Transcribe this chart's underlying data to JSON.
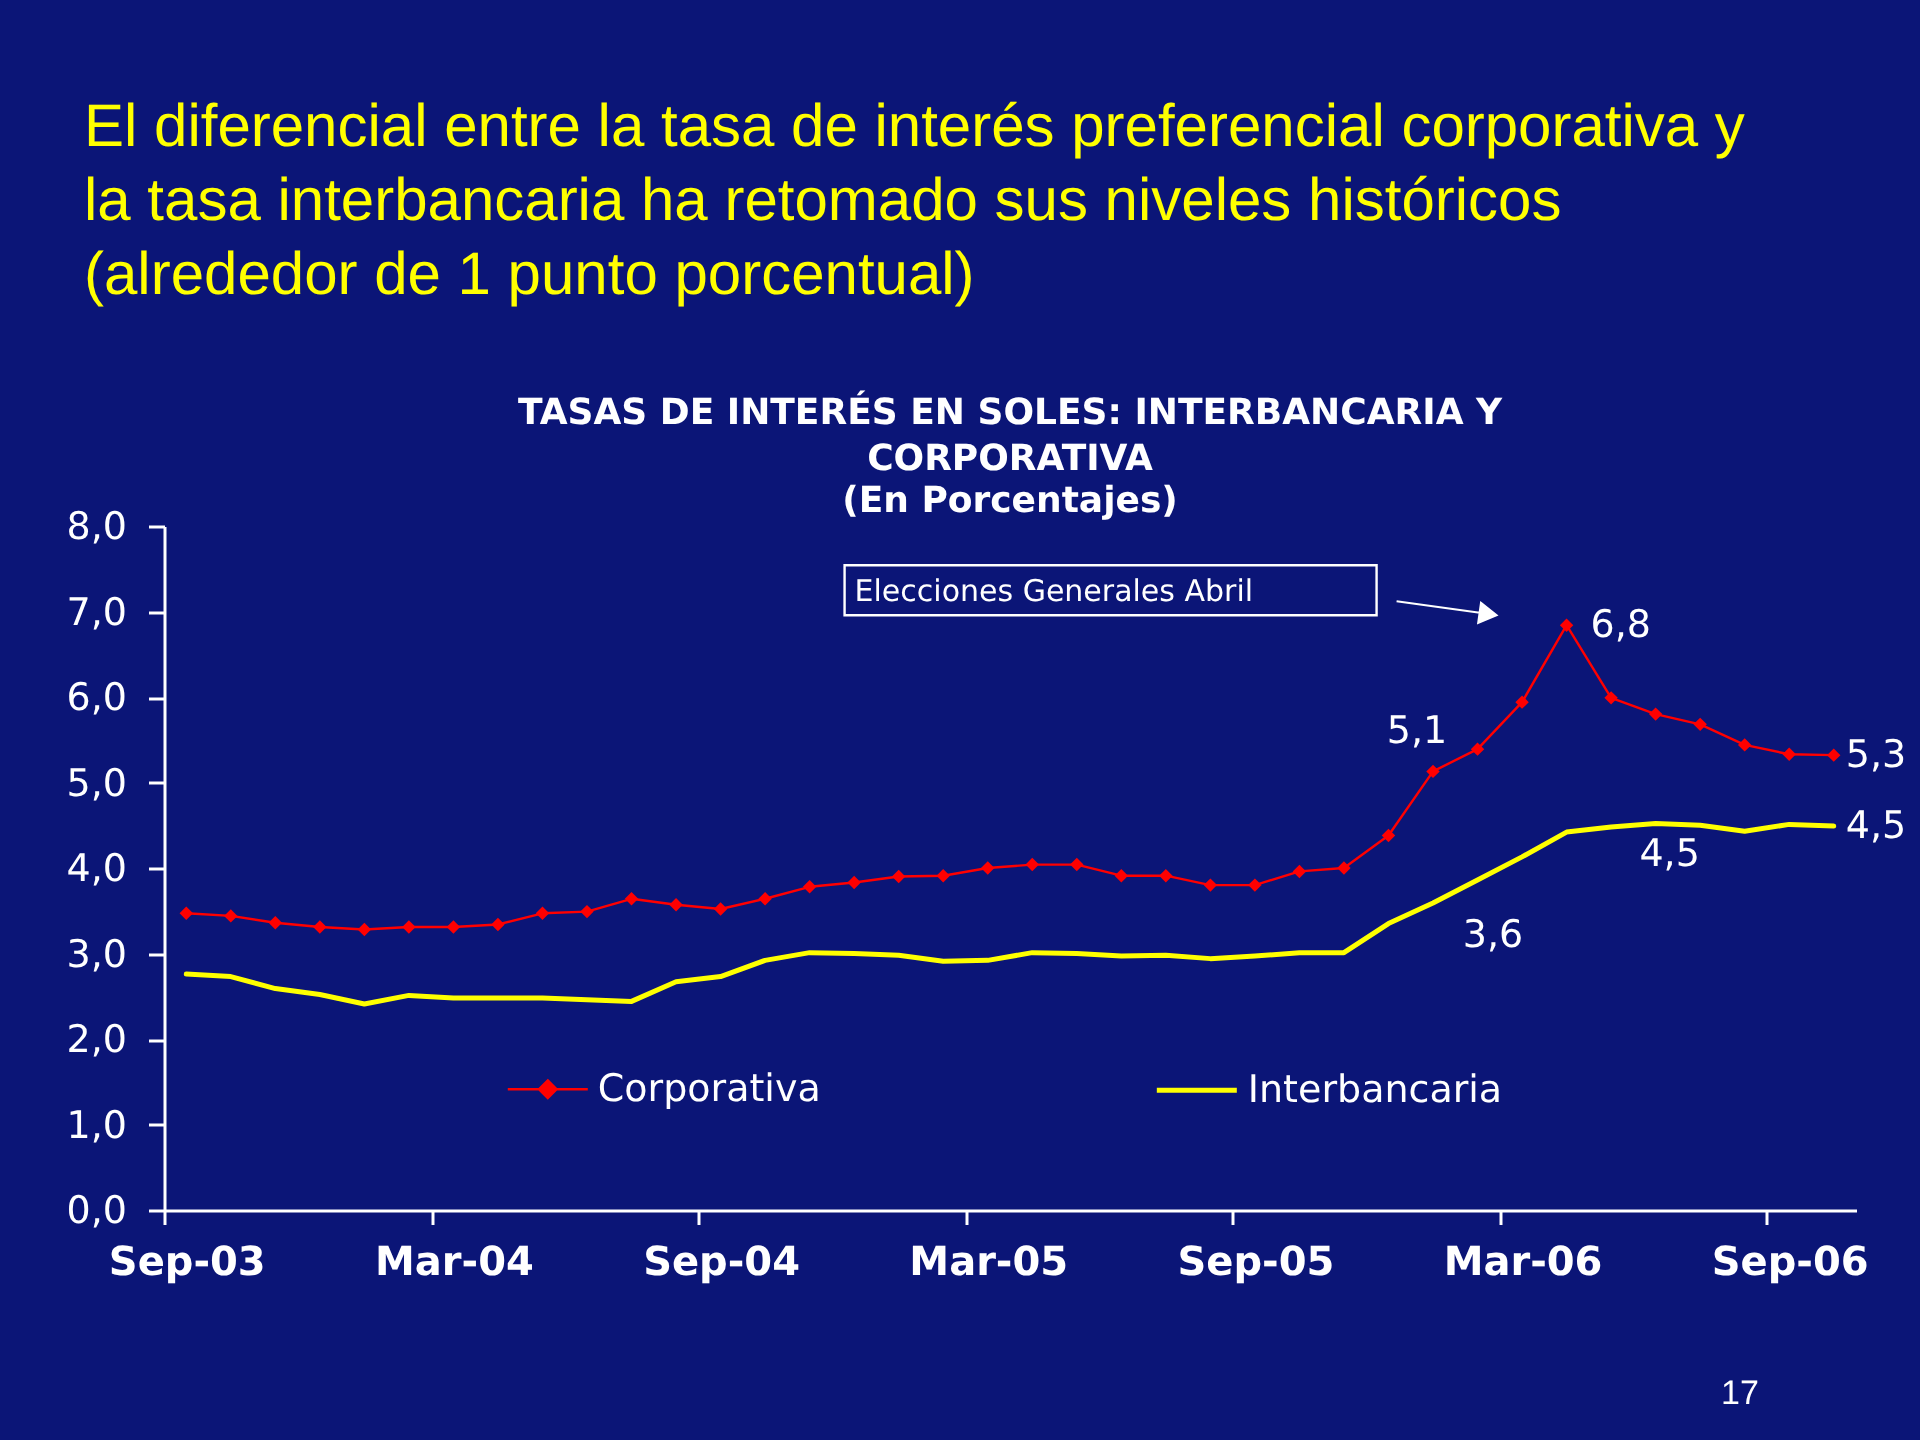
{
  "chart_data": {
    "type": "line",
    "title": "TASAS DE INTERÉS EN SOLES: INTERBANCARIA Y CORPORATIVA",
    "subtitle": "(En Porcentajes)",
    "annotations": [
      "El diferencial entre la tasa de interés preferencial corporativa y la tasa interbancaria ha retomado sus niveles históricos (alrededor de 1 punto porcentual)",
      "Elecciones Generales Abril",
      "17"
    ],
    "categories": [
      "Sep-03",
      null,
      null,
      null,
      null,
      null,
      "Mar-04",
      null,
      null,
      null,
      null,
      null,
      "Sep-04",
      null,
      null,
      null,
      null,
      null,
      "Mar-05",
      null,
      null,
      null,
      null,
      null,
      "Sep-05",
      null,
      null,
      null,
      null,
      null,
      "Mar-06",
      null,
      null,
      null,
      null,
      null,
      "Sep-06",
      null
    ],
    "series": [
      {
        "name": "Corporativa",
        "color": "#ff0000",
        "marker": "diamond",
        "line_style": "solid",
        "values": [
          3.47,
          3.44,
          3.36,
          3.31,
          3.28,
          3.31,
          3.31,
          3.34,
          3.47,
          3.49,
          3.64,
          3.57,
          3.52,
          3.64,
          3.78,
          3.83,
          3.9,
          3.91,
          4.0,
          4.04,
          4.04,
          3.91,
          3.91,
          3.8,
          3.8,
          3.96,
          4.0,
          4.38,
          5.13,
          5.39,
          5.94,
          6.84,
          5.99,
          5.8,
          5.68,
          5.44,
          5.33,
          5.32
        ],
        "value_labels": [
          null,
          null,
          null,
          null,
          null,
          null,
          null,
          null,
          null,
          null,
          null,
          null,
          null,
          null,
          null,
          null,
          null,
          null,
          null,
          null,
          null,
          null,
          null,
          null,
          null,
          null,
          null,
          null,
          "5,1",
          null,
          null,
          "6,8",
          null,
          null,
          null,
          null,
          null,
          "5,3"
        ]
      },
      {
        "name": "Interbancaria",
        "color": "#ffff00",
        "marker": "none",
        "line_style": "solid",
        "values": [
          2.76,
          2.73,
          2.59,
          2.52,
          2.41,
          2.51,
          2.48,
          2.48,
          2.48,
          2.46,
          2.44,
          2.67,
          2.73,
          2.92,
          3.01,
          3.0,
          2.98,
          2.91,
          2.92,
          3.01,
          3.0,
          2.97,
          2.98,
          2.94,
          2.97,
          3.01,
          3.01,
          3.35,
          3.59,
          3.86,
          4.13,
          4.42,
          4.48,
          4.52,
          4.5,
          4.43,
          4.51,
          4.49
        ],
        "value_labels": [
          null,
          null,
          null,
          null,
          null,
          null,
          null,
          null,
          null,
          null,
          null,
          null,
          null,
          null,
          null,
          null,
          null,
          null,
          null,
          null,
          null,
          null,
          null,
          null,
          null,
          null,
          null,
          null,
          "3,6",
          null,
          null,
          null,
          null,
          "4,5",
          null,
          null,
          null,
          "4,5"
        ]
      }
    ],
    "ylim": [
      0,
      8
    ],
    "yticks": [
      {
        "value": 0,
        "label": "0,0"
      },
      {
        "value": 1,
        "label": "1,0"
      },
      {
        "value": 2,
        "label": "2,0"
      },
      {
        "value": 3,
        "label": "3,0"
      },
      {
        "value": 4,
        "label": "4,0"
      },
      {
        "value": 5,
        "label": "5,0"
      },
      {
        "value": 6,
        "label": "6,0"
      },
      {
        "value": 7,
        "label": "7,0"
      },
      {
        "value": 8,
        "label": "8,0"
      }
    ],
    "legend": "bottom"
  }
}
